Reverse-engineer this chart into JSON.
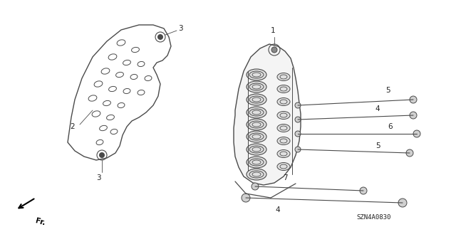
{
  "bg_color": "#ffffff",
  "line_color": "#4a4a4a",
  "text_color": "#222222",
  "part_number": "SZN4A0830",
  "figsize": [
    6.4,
    3.19
  ],
  "dpi": 100
}
